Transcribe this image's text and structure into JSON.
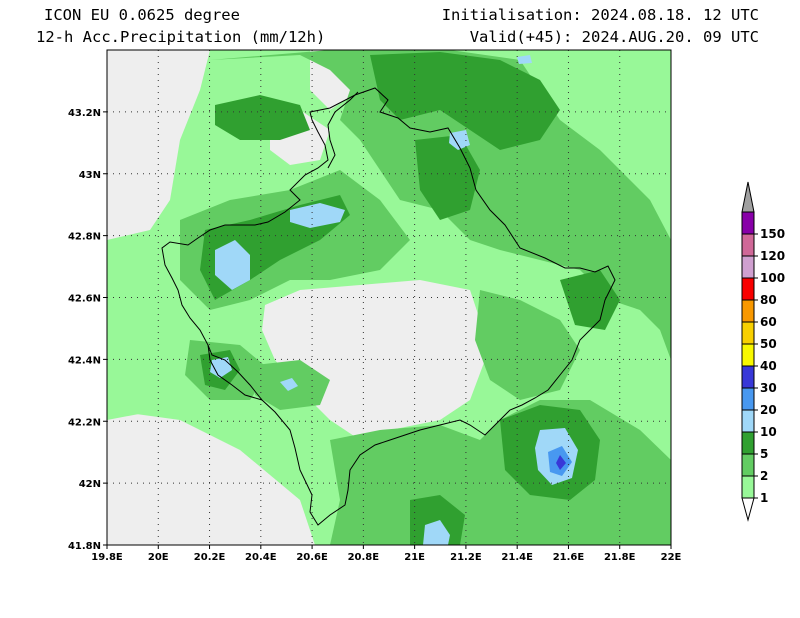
{
  "header": {
    "model": "ICON EU 0.0625 degree",
    "field": "12-h Acc.Precipitation (mm/12h)",
    "init": "Initialisation: 2024.08.18. 12 UTC",
    "valid": "Valid(+45): 2024.AUG.20. 09 UTC"
  },
  "map": {
    "lon_range": [
      19.8,
      22.0
    ],
    "lat_range": [
      41.8,
      43.4
    ],
    "lon_ticks": [
      {
        "value": 19.8,
        "label": "19.8E"
      },
      {
        "value": 20.0,
        "label": "20E"
      },
      {
        "value": 20.2,
        "label": "20.2E"
      },
      {
        "value": 20.4,
        "label": "20.4E"
      },
      {
        "value": 20.6,
        "label": "20.6E"
      },
      {
        "value": 20.8,
        "label": "20.8E"
      },
      {
        "value": 21.0,
        "label": "21E"
      },
      {
        "value": 21.2,
        "label": "21.2E"
      },
      {
        "value": 21.4,
        "label": "21.4E"
      },
      {
        "value": 21.6,
        "label": "21.6E"
      },
      {
        "value": 21.8,
        "label": "21.8E"
      },
      {
        "value": 22.0,
        "label": "22E"
      }
    ],
    "lat_ticks": [
      {
        "value": 41.8,
        "label": "41.8N"
      },
      {
        "value": 42.0,
        "label": "42N"
      },
      {
        "value": 42.2,
        "label": "42.2N"
      },
      {
        "value": 42.4,
        "label": "42.4N"
      },
      {
        "value": 42.6,
        "label": "42.6N"
      },
      {
        "value": 42.8,
        "label": "42.8N"
      },
      {
        "value": 43.0,
        "label": "43N"
      },
      {
        "value": 43.2,
        "label": "43.2N"
      }
    ],
    "gridlines": "dotted"
  },
  "colorbar": {
    "levels": [
      {
        "label": "1",
        "color": "#ffffff"
      },
      {
        "label": "2",
        "color": "#98f898"
      },
      {
        "label": "5",
        "color": "#62cc62"
      },
      {
        "label": "10",
        "color": "#30a030"
      },
      {
        "label": "20",
        "color": "#a0d8f8"
      },
      {
        "label": "30",
        "color": "#4898f0"
      },
      {
        "label": "40",
        "color": "#3838d8"
      },
      {
        "label": "50",
        "color": "#f8f800"
      },
      {
        "label": "60",
        "color": "#f8d000"
      },
      {
        "label": "80",
        "color": "#f89800"
      },
      {
        "label": "100",
        "color": "#f80000"
      },
      {
        "label": "120",
        "color": "#d0a0d0"
      },
      {
        "label": "150",
        "color": "#d06898"
      }
    ],
    "top_color": "#8800a8",
    "cap_color": "#a0a0a0"
  }
}
